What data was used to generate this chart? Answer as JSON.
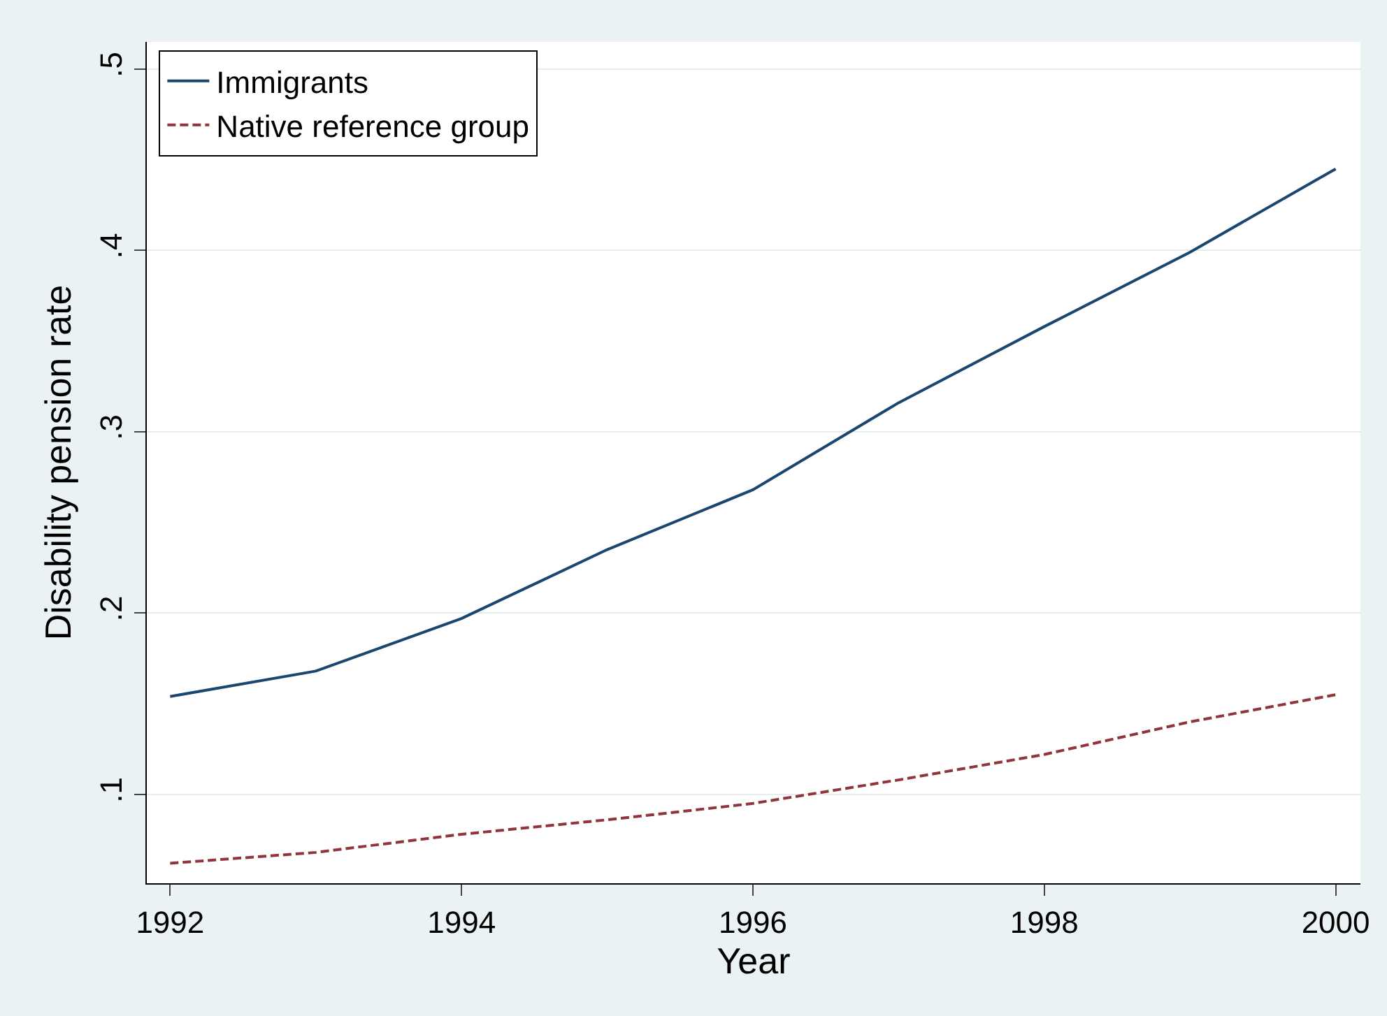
{
  "chart_data": {
    "type": "line",
    "xlabel": "Year",
    "ylabel": "Disability pension rate",
    "x": [
      1992,
      1993,
      1994,
      1995,
      1996,
      1997,
      1998,
      1999,
      2000
    ],
    "series": [
      {
        "name": "Immigrants",
        "color": "#1a476f",
        "line_style": "solid",
        "values": [
          0.154,
          0.168,
          0.197,
          0.235,
          0.268,
          0.316,
          0.358,
          0.399,
          0.445
        ]
      },
      {
        "name": "Native reference group",
        "color": "#90353b",
        "line_style": "dashed",
        "values": [
          0.062,
          0.068,
          0.078,
          0.086,
          0.095,
          0.108,
          0.122,
          0.14,
          0.155
        ]
      }
    ],
    "xlim": [
      1991.84,
      2000.17
    ],
    "xticks": [
      1992,
      1994,
      1996,
      1998,
      2000
    ],
    "ylim": [
      0.051,
      0.515
    ],
    "yticks": [
      {
        "value": 0.1,
        "label": ".1"
      },
      {
        "value": 0.2,
        "label": ".2"
      },
      {
        "value": 0.3,
        "label": ".3"
      },
      {
        "value": 0.4,
        "label": ".4"
      },
      {
        "value": 0.5,
        "label": ".5"
      }
    ],
    "grid": "y",
    "legend": "top left",
    "marker": "none"
  }
}
